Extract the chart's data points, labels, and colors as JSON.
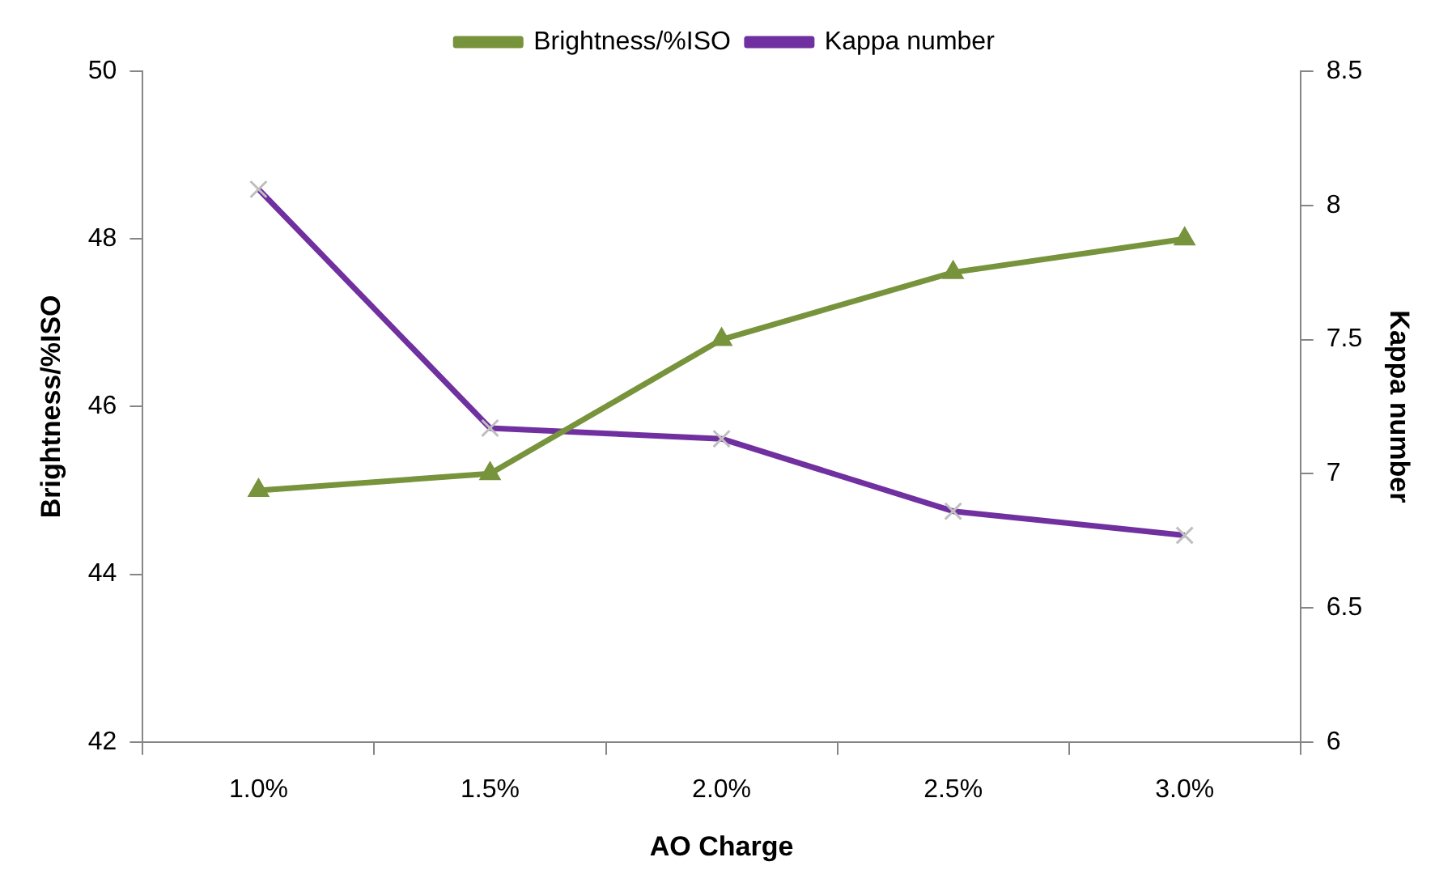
{
  "chart_data": {
    "type": "line",
    "xlabel": "AO Charge",
    "ylabel": "Brightness/%ISO",
    "y2label": "Kappa number",
    "categories": [
      "1.0%",
      "1.5%",
      "2.0%",
      "2.5%",
      "3.0%"
    ],
    "series": [
      {
        "name": "Brightness/%ISO",
        "color": "#77933c",
        "marker": "triangle",
        "values": [
          45.0,
          45.2,
          46.8,
          47.6,
          48.0
        ]
      },
      {
        "name": "Kappa number",
        "color": "#7030a0",
        "marker": "cross",
        "axis": "y2",
        "values": [
          8.06,
          7.17,
          7.13,
          6.86,
          6.77
        ]
      }
    ],
    "ylim": [
      42,
      50
    ],
    "yticks": [
      42,
      44,
      46,
      48,
      50
    ],
    "y2lim": [
      6,
      8.5
    ],
    "y2ticks": [
      6,
      6.5,
      7,
      7.5,
      8,
      8.5
    ],
    "grid": false,
    "legend": "top",
    "line_style": "solid"
  }
}
